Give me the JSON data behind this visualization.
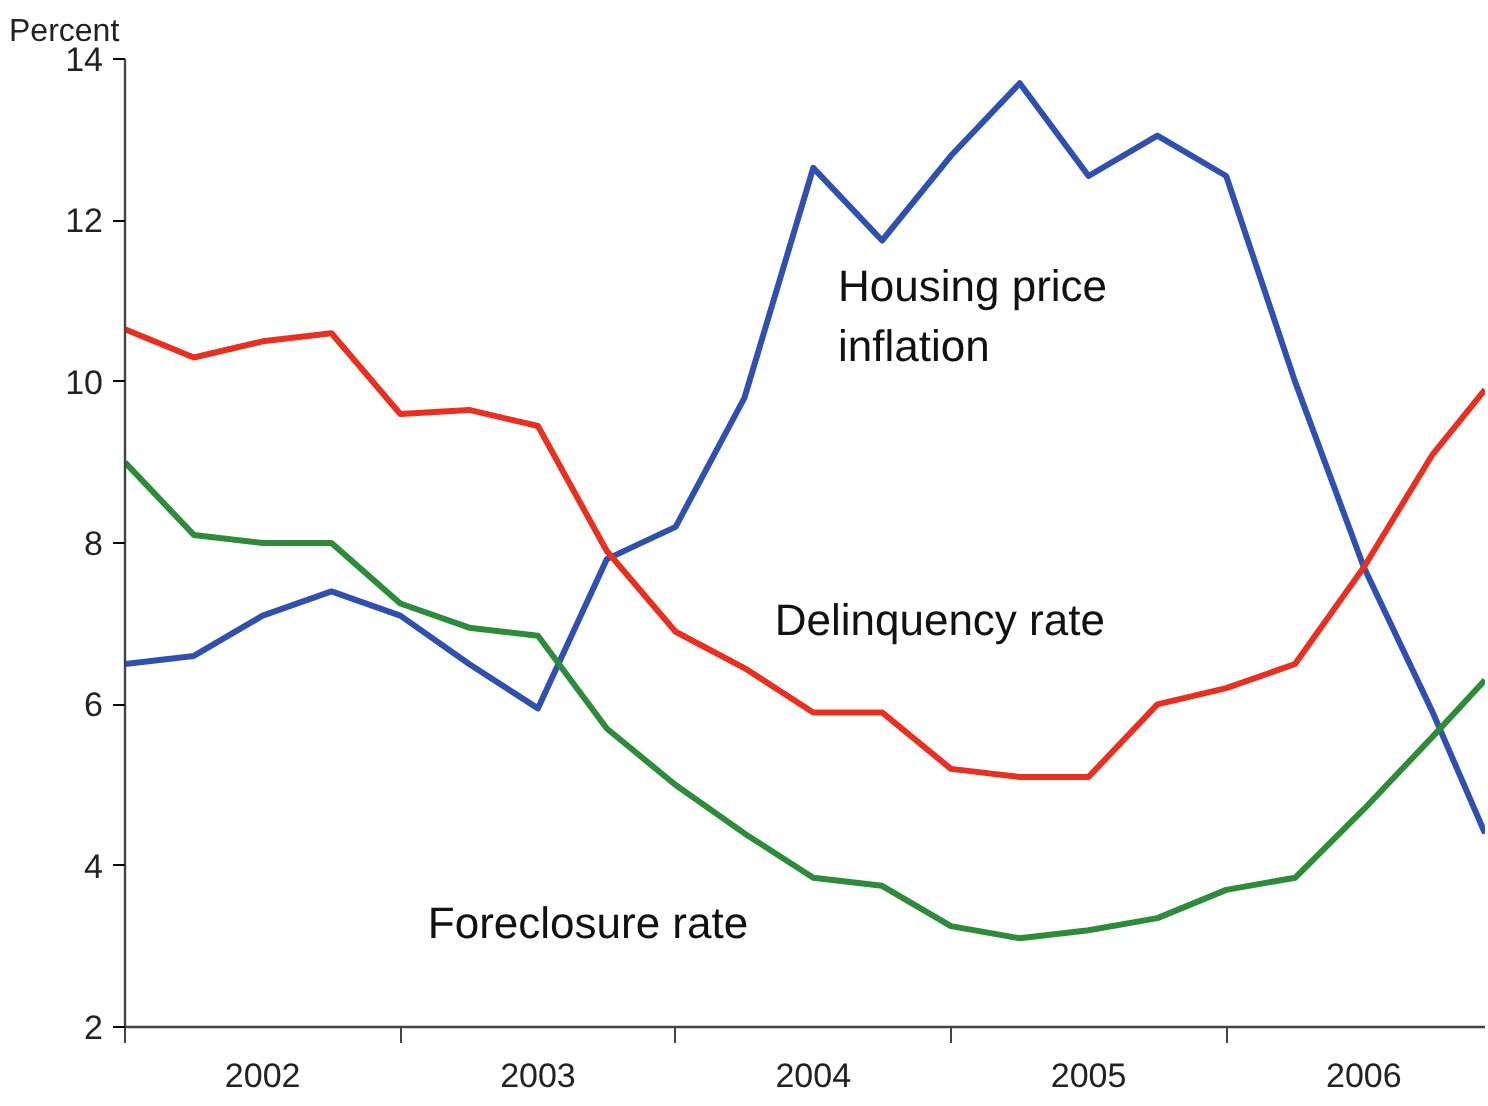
{
  "chart_data": {
    "type": "line",
    "ylabel": "Percent",
    "x": [
      2002.0,
      2002.25,
      2002.5,
      2002.75,
      2003.0,
      2003.25,
      2003.5,
      2003.75,
      2004.0,
      2004.25,
      2004.5,
      2004.75,
      2005.0,
      2005.25,
      2005.5,
      2005.75,
      2006.0,
      2006.25,
      2006.5,
      2006.75,
      2006.94
    ],
    "series": [
      {
        "name": "Housing price inflation",
        "color": "#3050b0",
        "values": [
          6.5,
          6.6,
          7.1,
          7.4,
          7.1,
          6.5,
          5.95,
          7.8,
          8.2,
          9.8,
          12.65,
          11.75,
          12.8,
          13.7,
          12.55,
          13.05,
          12.55,
          10.0,
          7.7,
          5.9,
          4.4
        ]
      },
      {
        "name": "Delinquency rate",
        "color": "#e83020",
        "values": [
          10.65,
          10.3,
          10.5,
          10.6,
          9.6,
          9.65,
          9.45,
          7.9,
          6.9,
          6.45,
          5.9,
          5.9,
          5.2,
          5.1,
          5.1,
          6.0,
          6.2,
          6.5,
          7.7,
          9.1,
          9.9
        ]
      },
      {
        "name": "Foreclosure rate",
        "color": "#2e8b3a",
        "values": [
          9.0,
          8.1,
          8.0,
          8.0,
          7.25,
          6.95,
          6.85,
          5.7,
          5.0,
          4.4,
          3.85,
          3.75,
          3.25,
          3.1,
          3.2,
          3.35,
          3.7,
          3.85,
          4.7,
          5.6,
          6.3
        ]
      }
    ],
    "xlim": [
      2002.0,
      2006.94
    ],
    "ylim": [
      2,
      14
    ],
    "xticks": [
      {
        "value": 2002,
        "label": null
      },
      {
        "value": 2002.5,
        "label": "2002"
      },
      {
        "value": 2003,
        "label": null
      },
      {
        "value": 2003.5,
        "label": "2003"
      },
      {
        "value": 2004,
        "label": null
      },
      {
        "value": 2004.5,
        "label": "2004"
      },
      {
        "value": 2005,
        "label": null
      },
      {
        "value": 2005.5,
        "label": "2005"
      },
      {
        "value": 2006,
        "label": null
      },
      {
        "value": 2006.5,
        "label": "2006"
      }
    ],
    "yticks": [
      2,
      4,
      6,
      8,
      10,
      12,
      14
    ],
    "grid": false,
    "legend": false,
    "marker": "none",
    "line_style": "solid"
  }
}
